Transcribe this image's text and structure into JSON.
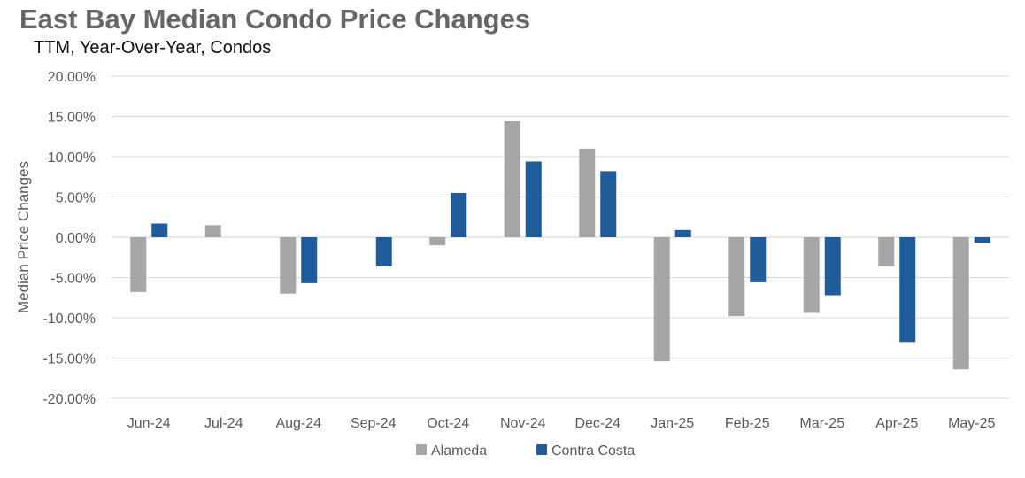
{
  "chart_data": {
    "type": "bar",
    "title": "East Bay Median Condo Price Changes",
    "subtitle": "TTM, Year-Over-Year,  Condos",
    "xlabel": "",
    "ylabel": "Median Price Changes",
    "ylim": [
      -0.2,
      0.2
    ],
    "yticks": [
      0.2,
      0.15,
      0.1,
      0.05,
      0.0,
      -0.05,
      -0.1,
      -0.15,
      -0.2
    ],
    "ytick_labels": [
      "20.00%",
      "15.00%",
      "10.00%",
      "5.00%",
      "0.00%",
      "-5.00%",
      "-10.00%",
      "-15.00%",
      "-20.00%"
    ],
    "grid": true,
    "legend_position": "bottom",
    "categories": [
      "Jun-24",
      "Jul-24",
      "Aug-24",
      "Sep-24",
      "Oct-24",
      "Nov-24",
      "Dec-24",
      "Jan-25",
      "Feb-25",
      "Mar-25",
      "Apr-25",
      "May-25"
    ],
    "series": [
      {
        "name": "Alameda",
        "color": "#a6a6a6",
        "values": [
          -0.068,
          0.015,
          -0.07,
          0.0,
          -0.01,
          0.144,
          0.11,
          -0.154,
          -0.098,
          -0.094,
          -0.036,
          -0.164
        ]
      },
      {
        "name": "Contra Costa",
        "color": "#1f5c99",
        "values": [
          0.017,
          0.0,
          -0.057,
          -0.036,
          0.055,
          0.094,
          0.082,
          0.009,
          -0.056,
          -0.072,
          -0.13,
          -0.007
        ]
      }
    ]
  }
}
